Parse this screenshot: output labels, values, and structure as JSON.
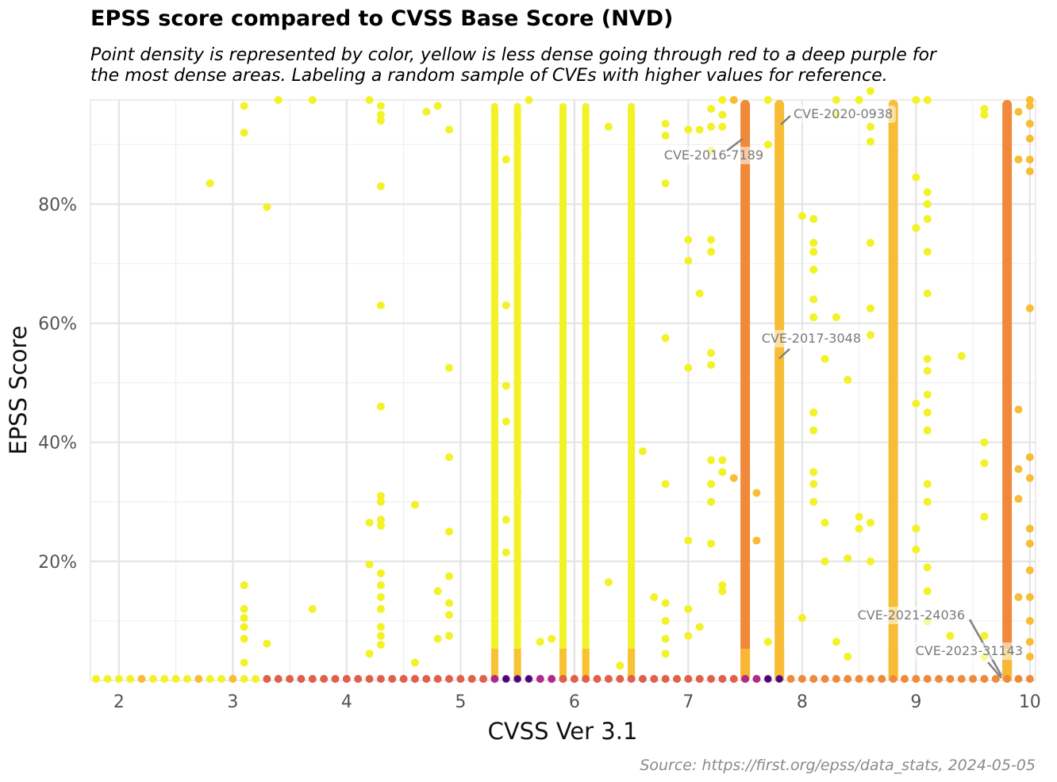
{
  "title": "EPSS score compared to CVSS Base Score (NVD)",
  "subtitle_line1": "Point density is represented by color, yellow is less dense going through red to a deep purple for",
  "subtitle_line2": "the most dense areas. Labeling a random sample of CVEs with higher values for reference.",
  "caption": "Source: https://first.org/epss/data_stats, 2024-05-05",
  "chart_data": {
    "type": "scatter",
    "title": "EPSS score compared to CVSS Base Score (NVD)",
    "xlabel": "CVSS Ver 3.1",
    "ylabel": "EPSS Score",
    "xlim": [
      1.75,
      10.05
    ],
    "ylim": [
      0,
      0.975
    ],
    "x_ticks": [
      2,
      3,
      4,
      5,
      6,
      7,
      8,
      9,
      10
    ],
    "x_tick_labels": [
      "2",
      "3",
      "4",
      "5",
      "6",
      "7",
      "8",
      "9",
      "10"
    ],
    "y_ticks": [
      0.2,
      0.4,
      0.6,
      0.8
    ],
    "y_tick_labels": [
      "20%",
      "40%",
      "60%",
      "80%"
    ],
    "grid": true,
    "color_scale": "plasma (yellow = low density, red, deep purple = high density)",
    "colors": {
      "low": "#f2f227",
      "mid": "#f7bd35",
      "high": "#f08a3a",
      "hot": "#e0604a",
      "dense": "#b02a8a",
      "max": "#3b0a82"
    },
    "dense_columns": [
      {
        "x": 5.3,
        "ymax": 0.97,
        "level": "low"
      },
      {
        "x": 5.5,
        "ymax": 0.97,
        "level": "low"
      },
      {
        "x": 5.9,
        "ymax": 0.97,
        "level": "low"
      },
      {
        "x": 6.1,
        "ymax": 0.97,
        "level": "low"
      },
      {
        "x": 6.5,
        "ymax": 0.97,
        "level": "low"
      },
      {
        "x": 7.5,
        "ymax": 0.975,
        "level": "high"
      },
      {
        "x": 7.8,
        "ymax": 0.975,
        "level": "mid"
      },
      {
        "x": 8.8,
        "ymax": 0.975,
        "level": "mid"
      },
      {
        "x": 9.8,
        "ymax": 0.975,
        "level": "high"
      }
    ],
    "points": [
      [
        2.8,
        0.835
      ],
      [
        3.1,
        0.965
      ],
      [
        3.1,
        0.92
      ],
      [
        3.3,
        0.795
      ],
      [
        3.4,
        0.975
      ],
      [
        3.7,
        0.975
      ],
      [
        3.1,
        0.16
      ],
      [
        3.1,
        0.12
      ],
      [
        3.1,
        0.105
      ],
      [
        3.1,
        0.09
      ],
      [
        3.1,
        0.07
      ],
      [
        3.1,
        0.03
      ],
      [
        3.3,
        0.062
      ],
      [
        3.7,
        0.12
      ],
      [
        4.2,
        0.975
      ],
      [
        4.3,
        0.965
      ],
      [
        4.3,
        0.95
      ],
      [
        4.3,
        0.94
      ],
      [
        4.3,
        0.83
      ],
      [
        4.3,
        0.63
      ],
      [
        4.3,
        0.46
      ],
      [
        4.3,
        0.31
      ],
      [
        4.3,
        0.3
      ],
      [
        4.3,
        0.27
      ],
      [
        4.3,
        0.26
      ],
      [
        4.2,
        0.265
      ],
      [
        4.2,
        0.195
      ],
      [
        4.3,
        0.18
      ],
      [
        4.3,
        0.16
      ],
      [
        4.3,
        0.14
      ],
      [
        4.3,
        0.12
      ],
      [
        4.3,
        0.09
      ],
      [
        4.3,
        0.075
      ],
      [
        4.3,
        0.06
      ],
      [
        4.2,
        0.045
      ],
      [
        4.6,
        0.295
      ],
      [
        4.7,
        0.955
      ],
      [
        4.8,
        0.965
      ],
      [
        4.9,
        0.925
      ],
      [
        4.9,
        0.525
      ],
      [
        4.9,
        0.375
      ],
      [
        4.9,
        0.25
      ],
      [
        4.9,
        0.175
      ],
      [
        4.8,
        0.15
      ],
      [
        4.9,
        0.13
      ],
      [
        4.9,
        0.11
      ],
      [
        4.9,
        0.075
      ],
      [
        4.8,
        0.07
      ],
      [
        4.6,
        0.03
      ],
      [
        5.4,
        0.875
      ],
      [
        5.4,
        0.63
      ],
      [
        5.4,
        0.495
      ],
      [
        5.4,
        0.435
      ],
      [
        5.4,
        0.27
      ],
      [
        5.4,
        0.215
      ],
      [
        5.5,
        0.315
      ],
      [
        5.5,
        0.785
      ],
      [
        5.5,
        0.745
      ],
      [
        5.6,
        0.975
      ],
      [
        5.7,
        0.065
      ],
      [
        5.8,
        0.07
      ],
      [
        6.3,
        0.93
      ],
      [
        6.3,
        0.165
      ],
      [
        6.4,
        0.025
      ],
      [
        6.6,
        0.385
      ],
      [
        6.7,
        0.14
      ],
      [
        6.8,
        0.935
      ],
      [
        6.8,
        0.915
      ],
      [
        6.8,
        0.835
      ],
      [
        6.8,
        0.575
      ],
      [
        6.8,
        0.33
      ],
      [
        6.8,
        0.13
      ],
      [
        6.8,
        0.1
      ],
      [
        6.8,
        0.07
      ],
      [
        6.8,
        0.045
      ],
      [
        7.0,
        0.925
      ],
      [
        7.0,
        0.74
      ],
      [
        7.0,
        0.705
      ],
      [
        7.0,
        0.525
      ],
      [
        7.0,
        0.235
      ],
      [
        7.0,
        0.12
      ],
      [
        7.0,
        0.075
      ],
      [
        7.1,
        0.925
      ],
      [
        7.1,
        0.65
      ],
      [
        7.1,
        0.09
      ],
      [
        7.2,
        0.96
      ],
      [
        7.2,
        0.93
      ],
      [
        7.2,
        0.89
      ],
      [
        7.2,
        0.74
      ],
      [
        7.2,
        0.72
      ],
      [
        7.2,
        0.55
      ],
      [
        7.2,
        0.53
      ],
      [
        7.2,
        0.37
      ],
      [
        7.2,
        0.33
      ],
      [
        7.2,
        0.3
      ],
      [
        7.2,
        0.23
      ],
      [
        7.3,
        0.975
      ],
      [
        7.3,
        0.95
      ],
      [
        7.3,
        0.93
      ],
      [
        7.3,
        0.37
      ],
      [
        7.3,
        0.35
      ],
      [
        7.3,
        0.16
      ],
      [
        7.3,
        0.15
      ],
      [
        7.4,
        0.975
      ],
      [
        7.4,
        0.34
      ],
      [
        7.6,
        0.315
      ],
      [
        7.6,
        0.235
      ],
      [
        7.7,
        0.975
      ],
      [
        7.7,
        0.9
      ],
      [
        7.7,
        0.065
      ],
      [
        8.0,
        0.78
      ],
      [
        8.0,
        0.105
      ],
      [
        8.1,
        0.775
      ],
      [
        8.1,
        0.735
      ],
      [
        8.1,
        0.72
      ],
      [
        8.1,
        0.69
      ],
      [
        8.1,
        0.64
      ],
      [
        8.1,
        0.61
      ],
      [
        8.1,
        0.45
      ],
      [
        8.1,
        0.42
      ],
      [
        8.1,
        0.35
      ],
      [
        8.1,
        0.33
      ],
      [
        8.1,
        0.3
      ],
      [
        8.2,
        0.54
      ],
      [
        8.2,
        0.265
      ],
      [
        8.2,
        0.2
      ],
      [
        8.3,
        0.975
      ],
      [
        8.3,
        0.95
      ],
      [
        8.3,
        0.61
      ],
      [
        8.3,
        0.065
      ],
      [
        8.4,
        0.505
      ],
      [
        8.4,
        0.205
      ],
      [
        8.4,
        0.04
      ],
      [
        8.5,
        0.975
      ],
      [
        8.5,
        0.275
      ],
      [
        8.5,
        0.255
      ],
      [
        8.6,
        0.99
      ],
      [
        8.6,
        0.93
      ],
      [
        8.6,
        0.905
      ],
      [
        8.6,
        0.735
      ],
      [
        8.6,
        0.625
      ],
      [
        8.6,
        0.58
      ],
      [
        8.6,
        0.265
      ],
      [
        8.6,
        0.2
      ],
      [
        9.0,
        0.975
      ],
      [
        9.0,
        0.845
      ],
      [
        9.0,
        0.76
      ],
      [
        9.0,
        0.465
      ],
      [
        9.0,
        0.255
      ],
      [
        9.0,
        0.22
      ],
      [
        9.1,
        0.975
      ],
      [
        9.1,
        0.82
      ],
      [
        9.1,
        0.8
      ],
      [
        9.1,
        0.775
      ],
      [
        9.1,
        0.72
      ],
      [
        9.1,
        0.65
      ],
      [
        9.1,
        0.54
      ],
      [
        9.1,
        0.52
      ],
      [
        9.1,
        0.48
      ],
      [
        9.1,
        0.45
      ],
      [
        9.1,
        0.42
      ],
      [
        9.1,
        0.33
      ],
      [
        9.1,
        0.3
      ],
      [
        9.1,
        0.19
      ],
      [
        9.1,
        0.15
      ],
      [
        9.1,
        0.1
      ],
      [
        9.3,
        0.075
      ],
      [
        9.4,
        0.545
      ],
      [
        9.6,
        0.4
      ],
      [
        9.6,
        0.365
      ],
      [
        9.6,
        0.275
      ],
      [
        9.6,
        0.96
      ],
      [
        9.6,
        0.95
      ],
      [
        9.6,
        0.075
      ],
      [
        9.6,
        0.04
      ],
      [
        9.9,
        0.875
      ],
      [
        9.9,
        0.455
      ],
      [
        9.9,
        0.355
      ],
      [
        9.9,
        0.305
      ],
      [
        9.9,
        0.14
      ],
      [
        9.9,
        0.955
      ],
      [
        10.0,
        0.975
      ],
      [
        10.0,
        0.965
      ],
      [
        10.0,
        0.935
      ],
      [
        10.0,
        0.91
      ],
      [
        10.0,
        0.875
      ],
      [
        10.0,
        0.855
      ],
      [
        10.0,
        0.625
      ],
      [
        10.0,
        0.375
      ],
      [
        10.0,
        0.34
      ],
      [
        10.0,
        0.255
      ],
      [
        10.0,
        0.23
      ],
      [
        10.0,
        0.185
      ],
      [
        10.0,
        0.14
      ],
      [
        10.0,
        0.1
      ],
      [
        10.0,
        0.065
      ],
      [
        10.0,
        0.04
      ]
    ],
    "baseline_points_x": [
      1.8,
      1.9,
      2.0,
      2.1,
      2.2,
      2.3,
      2.4,
      2.5,
      2.6,
      2.7,
      2.8,
      2.9,
      3.0,
      3.1,
      3.2,
      3.3,
      3.4,
      3.5,
      3.6,
      3.7,
      3.8,
      3.9,
      4.0,
      4.1,
      4.2,
      4.3,
      4.4,
      4.5,
      4.6,
      4.7,
      4.8,
      4.9,
      5.0,
      5.1,
      5.2,
      5.3,
      5.4,
      5.5,
      5.6,
      5.7,
      5.8,
      5.9,
      6.0,
      6.1,
      6.2,
      6.3,
      6.4,
      6.5,
      6.6,
      6.7,
      6.8,
      6.9,
      7.0,
      7.1,
      7.2,
      7.3,
      7.4,
      7.5,
      7.6,
      7.7,
      7.8,
      7.9,
      8.0,
      8.1,
      8.2,
      8.3,
      8.4,
      8.5,
      8.6,
      8.7,
      8.8,
      8.9,
      9.0,
      9.1,
      9.2,
      9.3,
      9.4,
      9.5,
      9.6,
      9.7,
      9.8,
      9.9,
      10.0
    ],
    "annotations": [
      {
        "label": "CVE-2020-0938",
        "x": 7.8,
        "y": 0.925
      },
      {
        "label": "CVE-2016-7189",
        "x": 7.5,
        "y": 0.905
      },
      {
        "label": "CVE-2017-3048",
        "x": 7.8,
        "y": 0.535
      },
      {
        "label": "CVE-2021-24036",
        "x": 9.8,
        "y": 0.005
      },
      {
        "label": "CVE-2023-31143",
        "x": 9.8,
        "y": 0.003
      }
    ]
  }
}
